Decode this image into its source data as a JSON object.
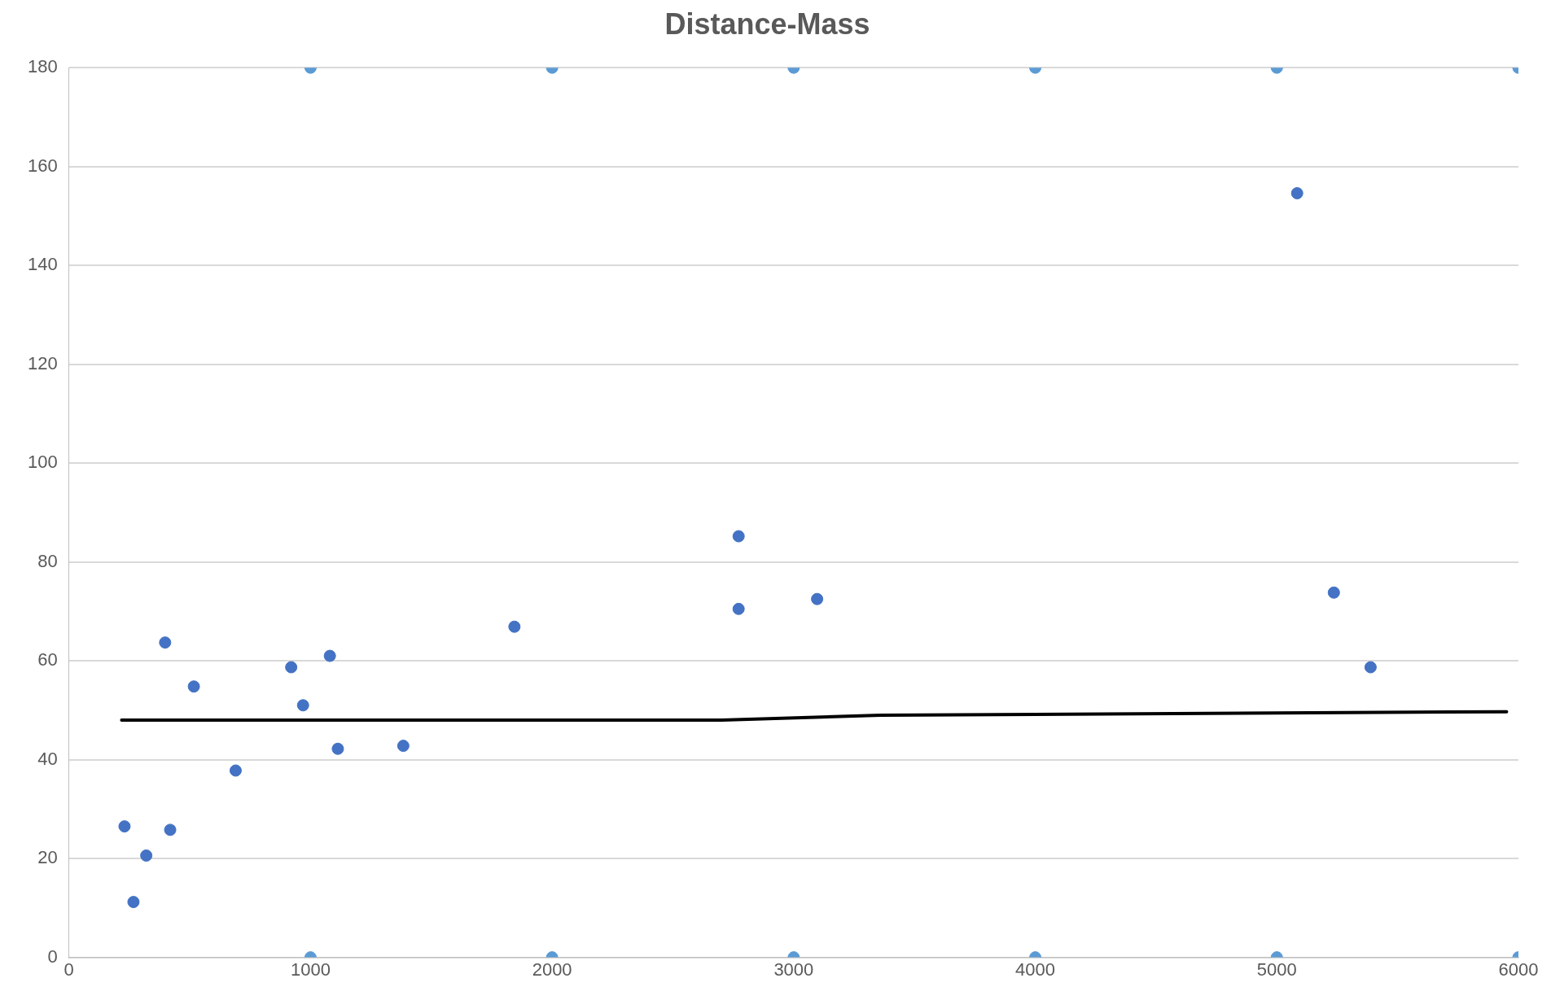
{
  "chart_data": {
    "type": "scatter",
    "title": "Distance-Mass",
    "xlim": [
      0,
      6000
    ],
    "xticks": [
      0,
      1000,
      2000,
      3000,
      4000,
      5000,
      6000
    ],
    "ylim": [
      0,
      180
    ],
    "yticks": [
      0,
      20,
      40,
      60,
      80,
      100,
      120,
      140,
      160,
      180
    ],
    "grid": "y",
    "legend": false,
    "marker": "circle",
    "series": [
      {
        "color": "#4472c4",
        "x": [
          230,
          267,
          320,
          398,
          419,
          517,
          690,
          920,
          969,
          1080,
          1113,
          1384,
          1844,
          2772,
          2772,
          3097,
          5084,
          5236,
          5388
        ],
        "values": [
          26.5,
          11.2,
          20.6,
          63.7,
          25.8,
          54.8,
          37.8,
          58.7,
          51,
          61,
          42.2,
          42.8,
          66.9,
          85.2,
          70.5,
          72.5,
          154.6,
          73.8,
          58.7
        ]
      },
      {
        "color": "#5b9bd5",
        "x": [
          1000,
          2000,
          3000,
          4000,
          5000,
          6000
        ],
        "values": [
          180,
          180,
          180,
          180,
          180,
          180
        ]
      },
      {
        "color": "#5b9bd5",
        "x": [
          1000,
          2000,
          3000,
          4000,
          5000,
          6000
        ],
        "values": [
          0,
          0,
          0,
          0,
          0,
          0
        ]
      },
      {
        "type": "line",
        "color": "#000000",
        "marker": "none",
        "line_style": "solid",
        "x": [
          218,
          2702,
          3359,
          5951
        ],
        "values": [
          48,
          48,
          49,
          49.7
        ]
      }
    ]
  }
}
